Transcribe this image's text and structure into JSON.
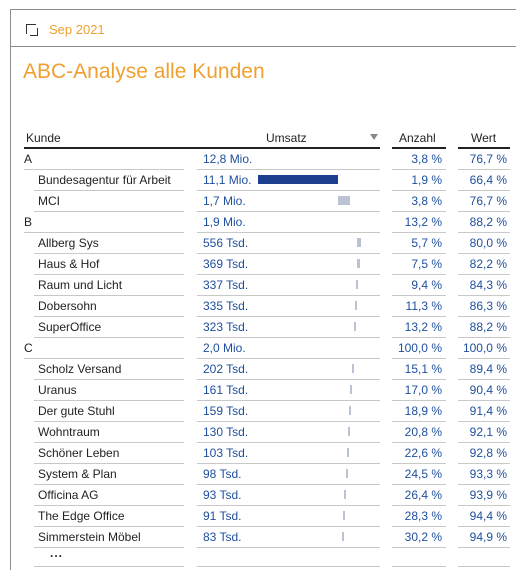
{
  "period": {
    "label": "Sep 2021"
  },
  "title": "ABC-Analyse alle Kunden",
  "columns": {
    "kunde": "Kunde",
    "umsatz": "Umsatz",
    "anzahl": "Anzahl",
    "wert": "Wert"
  },
  "ellipsis": "...",
  "rows": [
    {
      "kind": "group",
      "name": "A",
      "umsatz": "12,8 Mio.",
      "anzahl": "3,8 %",
      "wert": "76,7 %"
    },
    {
      "kind": "item",
      "name": "Bundesagentur für Arbeit",
      "umsatz": "11,1 Mio.",
      "anzahl": "1,9 %",
      "wert": "66,4 %",
      "revenue_share": 0.725
    },
    {
      "kind": "item",
      "name": "MCI",
      "umsatz": "1,7 Mio.",
      "anzahl": "3,8 %",
      "wert": "76,7 %",
      "revenue_share": 0.109
    },
    {
      "kind": "group",
      "name": "B",
      "umsatz": "1,9 Mio.",
      "anzahl": "13,2 %",
      "wert": "88,2 %"
    },
    {
      "kind": "item",
      "name": "Allberg Sys",
      "umsatz": "556 Tsd.",
      "anzahl": "5,7 %",
      "wert": "80,0 %",
      "revenue_share": 0.036
    },
    {
      "kind": "item",
      "name": "Haus & Hof",
      "umsatz": "369 Tsd.",
      "anzahl": "7,5 %",
      "wert": "82,2 %",
      "revenue_share": 0.024
    },
    {
      "kind": "item",
      "name": "Raum und Licht",
      "umsatz": "337 Tsd.",
      "anzahl": "9,4 %",
      "wert": "84,3 %",
      "revenue_share": 0.022
    },
    {
      "kind": "item",
      "name": "Dobersohn",
      "umsatz": "335 Tsd.",
      "anzahl": "11,3 %",
      "wert": "86,3 %",
      "revenue_share": 0.022
    },
    {
      "kind": "item",
      "name": "SuperOffice",
      "umsatz": "323 Tsd.",
      "anzahl": "13,2 %",
      "wert": "88,2 %",
      "revenue_share": 0.021
    },
    {
      "kind": "group",
      "name": "C",
      "umsatz": "2,0 Mio.",
      "anzahl": "100,0 %",
      "wert": "100,0 %"
    },
    {
      "kind": "item",
      "name": "Scholz Versand",
      "umsatz": "202 Tsd.",
      "anzahl": "15,1 %",
      "wert": "89,4 %",
      "revenue_share": 0.013
    },
    {
      "kind": "item",
      "name": "Uranus",
      "umsatz": "161 Tsd.",
      "anzahl": "17,0 %",
      "wert": "90,4 %",
      "revenue_share": 0.011
    },
    {
      "kind": "item",
      "name": "Der gute Stuhl",
      "umsatz": "159 Tsd.",
      "anzahl": "18,9 %",
      "wert": "91,4 %",
      "revenue_share": 0.01
    },
    {
      "kind": "item",
      "name": "Wohntraum",
      "umsatz": "130 Tsd.",
      "anzahl": "20,8 %",
      "wert": "92,1 %",
      "revenue_share": 0.008
    },
    {
      "kind": "item",
      "name": "Schöner Leben",
      "umsatz": "103 Tsd.",
      "anzahl": "22,6 %",
      "wert": "92,8 %",
      "revenue_share": 0.007
    },
    {
      "kind": "item",
      "name": "System & Plan",
      "umsatz": "98 Tsd.",
      "anzahl": "24,5 %",
      "wert": "93,3 %",
      "revenue_share": 0.006
    },
    {
      "kind": "item",
      "name": "Officina AG",
      "umsatz": "93 Tsd.",
      "anzahl": "26,4 %",
      "wert": "93,9 %",
      "revenue_share": 0.006
    },
    {
      "kind": "item",
      "name": "The Edge Office",
      "umsatz": "91 Tsd.",
      "anzahl": "28,3 %",
      "wert": "94,4 %",
      "revenue_share": 0.006
    },
    {
      "kind": "item",
      "name": "Simmerstein Möbel",
      "umsatz": "83 Tsd.",
      "anzahl": "30,2 %",
      "wert": "94,9 %",
      "revenue_share": 0.005
    }
  ]
}
